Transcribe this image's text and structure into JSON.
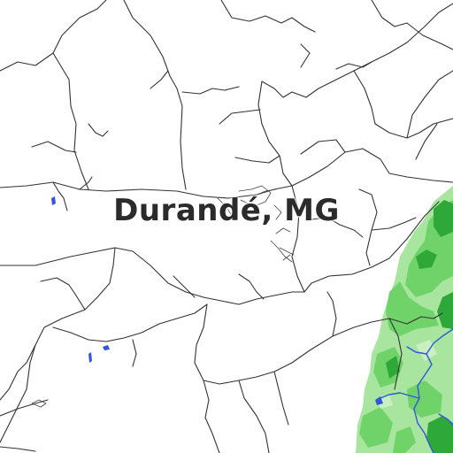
{
  "map": {
    "place_label": "Durandé, MG",
    "colors": {
      "background": "#ffffff",
      "road": "#333333",
      "forest_light": "#a8e6a0",
      "forest_mid": "#6fd36a",
      "forest_dark": "#2fa83a",
      "water": "#3355dd"
    }
  }
}
